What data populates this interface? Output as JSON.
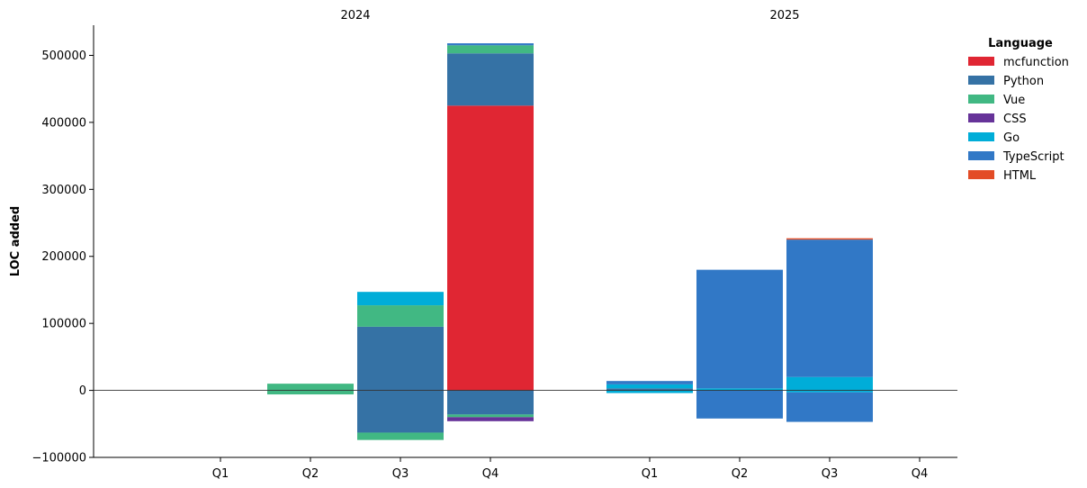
{
  "chart_data": {
    "type": "bar",
    "stacked": true,
    "ylabel": "LOC added",
    "ylim": [
      -100000,
      545000
    ],
    "yticks": [
      -100000,
      0,
      100000,
      200000,
      300000,
      400000,
      500000
    ],
    "ytick_labels": [
      "−100000",
      "0",
      "100000",
      "200000",
      "300000",
      "400000",
      "500000"
    ],
    "grid": false,
    "legend_position": "top-right",
    "legend_title": "Language",
    "languages": [
      {
        "name": "mcfunction",
        "color": "#e02633"
      },
      {
        "name": "Python",
        "color": "#3572a5"
      },
      {
        "name": "Vue",
        "color": "#41b883"
      },
      {
        "name": "CSS",
        "color": "#663399"
      },
      {
        "name": "Go",
        "color": "#00add8"
      },
      {
        "name": "TypeScript",
        "color": "#3178c6"
      },
      {
        "name": "HTML",
        "color": "#e34c26"
      }
    ],
    "facets": [
      {
        "title": "2024",
        "categories": [
          "Q1",
          "Q2",
          "Q3",
          "Q4"
        ],
        "series": [
          {
            "name": "mcfunction",
            "positive": [
              0,
              0,
              0,
              425000
            ],
            "negative": [
              0,
              0,
              0,
              0
            ]
          },
          {
            "name": "Python",
            "positive": [
              0,
              0,
              95000,
              78000
            ],
            "negative": [
              0,
              0,
              -63000,
              -36000
            ]
          },
          {
            "name": "Vue",
            "positive": [
              0,
              10000,
              32000,
              12000
            ],
            "negative": [
              0,
              -6000,
              -11000,
              -4000
            ]
          },
          {
            "name": "CSS",
            "positive": [
              0,
              0,
              0,
              0
            ],
            "negative": [
              0,
              0,
              0,
              -6000
            ]
          },
          {
            "name": "Go",
            "positive": [
              0,
              0,
              20000,
              0
            ],
            "negative": [
              0,
              0,
              0,
              0
            ]
          },
          {
            "name": "TypeScript",
            "positive": [
              0,
              0,
              0,
              3000
            ],
            "negative": [
              0,
              0,
              0,
              0
            ]
          },
          {
            "name": "HTML",
            "positive": [
              0,
              0,
              0,
              0
            ],
            "negative": [
              0,
              0,
              0,
              0
            ]
          }
        ]
      },
      {
        "title": "2025",
        "categories": [
          "Q1",
          "Q2",
          "Q3",
          "Q4"
        ],
        "series": [
          {
            "name": "mcfunction",
            "positive": [
              0,
              0,
              0,
              0
            ],
            "negative": [
              0,
              0,
              0,
              0
            ]
          },
          {
            "name": "Python",
            "positive": [
              3000,
              0,
              0,
              0
            ],
            "negative": [
              0,
              0,
              0,
              0
            ]
          },
          {
            "name": "Vue",
            "positive": [
              0,
              0,
              0,
              0
            ],
            "negative": [
              0,
              0,
              0,
              0
            ]
          },
          {
            "name": "CSS",
            "positive": [
              0,
              0,
              0,
              0
            ],
            "negative": [
              0,
              0,
              0,
              0
            ]
          },
          {
            "name": "Go",
            "positive": [
              6000,
              3000,
              20000,
              0
            ],
            "negative": [
              -4000,
              0,
              -3000,
              0
            ]
          },
          {
            "name": "TypeScript",
            "positive": [
              5000,
              177000,
              205000,
              0
            ],
            "negative": [
              0,
              -42000,
              -44000,
              0
            ]
          },
          {
            "name": "HTML",
            "positive": [
              0,
              0,
              2000,
              0
            ],
            "negative": [
              0,
              0,
              0,
              0
            ]
          }
        ]
      }
    ]
  }
}
